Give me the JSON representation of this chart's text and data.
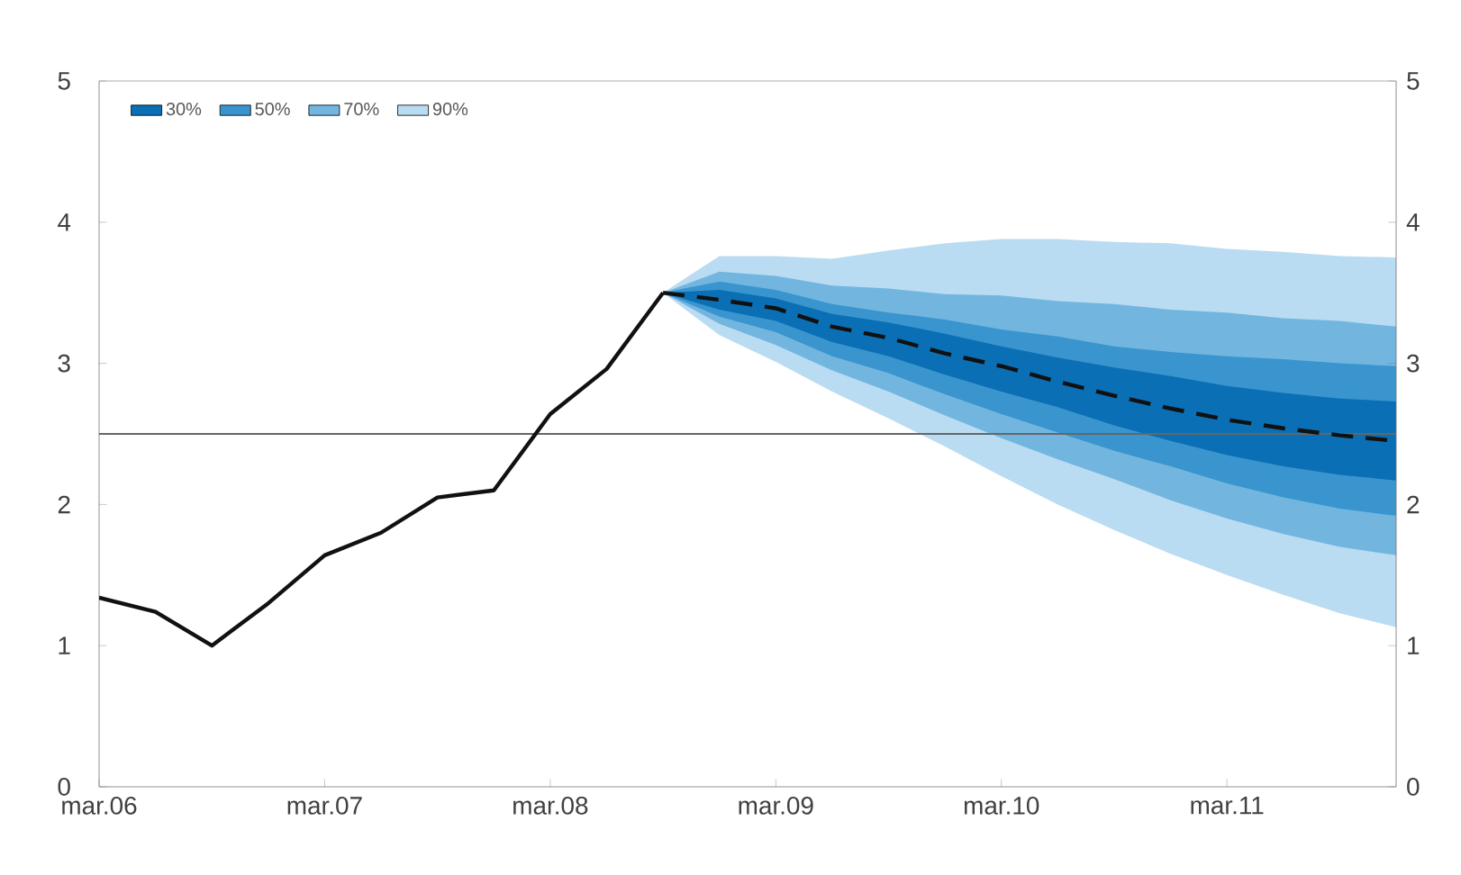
{
  "chart_data": {
    "type": "line",
    "xlim": [
      "2006-03",
      "2011-12"
    ],
    "xticks": [
      {
        "value": "2006-03",
        "label": "mar.06"
      },
      {
        "value": "2007-03",
        "label": "mar.07"
      },
      {
        "value": "2008-03",
        "label": "mar.08"
      },
      {
        "value": "2009-03",
        "label": "mar.09"
      },
      {
        "value": "2010-03",
        "label": "mar.10"
      },
      {
        "value": "2011-03",
        "label": "mar.11"
      }
    ],
    "ylim": [
      0,
      5
    ],
    "yticks": [
      0,
      1,
      2,
      3,
      4,
      5
    ],
    "y2lim": [
      0,
      5
    ],
    "y2ticks": [
      0,
      1,
      2,
      3,
      4,
      5
    ],
    "legend": "top left",
    "ref_lines": [
      {
        "axis": "y",
        "value": 2.5,
        "color": "#666666"
      }
    ],
    "series": [
      {
        "name": "90%",
        "color": "#b9dcf2",
        "x": [
          "2008-09",
          "2008-12",
          "2009-03",
          "2009-06",
          "2009-09",
          "2009-12",
          "2010-03",
          "2010-06",
          "2010-09",
          "2010-12",
          "2011-03",
          "2011-06",
          "2011-09",
          "2011-12"
        ],
        "values": [
          null,
          null,
          null,
          null,
          null,
          null,
          null,
          null,
          null,
          null,
          null,
          null,
          null,
          null
        ],
        "lower": [
          3.5,
          3.2,
          3.01,
          2.8,
          2.61,
          2.41,
          2.2,
          2.0,
          1.82,
          1.65,
          1.5,
          1.36,
          1.23,
          1.13
        ],
        "upper": [
          3.5,
          3.76,
          3.76,
          3.74,
          3.8,
          3.85,
          3.88,
          3.88,
          3.86,
          3.85,
          3.81,
          3.79,
          3.76,
          3.75
        ]
      },
      {
        "name": "70%",
        "color": "#72b6e0",
        "x": [
          "2008-09",
          "2008-12",
          "2009-03",
          "2009-06",
          "2009-09",
          "2009-12",
          "2010-03",
          "2010-06",
          "2010-09",
          "2010-12",
          "2011-03",
          "2011-06",
          "2011-09",
          "2011-12"
        ],
        "values": [
          null,
          null,
          null,
          null,
          null,
          null,
          null,
          null,
          null,
          null,
          null,
          null,
          null,
          null
        ],
        "lower": [
          3.5,
          3.28,
          3.13,
          2.95,
          2.8,
          2.63,
          2.47,
          2.32,
          2.18,
          2.03,
          1.9,
          1.79,
          1.7,
          1.64
        ],
        "upper": [
          3.5,
          3.65,
          3.62,
          3.55,
          3.53,
          3.49,
          3.48,
          3.44,
          3.42,
          3.38,
          3.36,
          3.32,
          3.3,
          3.26
        ]
      },
      {
        "name": "50%",
        "color": "#3a95cf",
        "x": [
          "2008-09",
          "2008-12",
          "2009-03",
          "2009-06",
          "2009-09",
          "2009-12",
          "2010-03",
          "2010-06",
          "2010-09",
          "2010-12",
          "2011-03",
          "2011-06",
          "2011-09",
          "2011-12"
        ],
        "values": [
          null,
          null,
          null,
          null,
          null,
          null,
          null,
          null,
          null,
          null,
          null,
          null,
          null,
          null
        ],
        "lower": [
          3.5,
          3.33,
          3.22,
          3.05,
          2.93,
          2.78,
          2.64,
          2.51,
          2.38,
          2.27,
          2.15,
          2.05,
          1.97,
          1.92
        ],
        "upper": [
          3.5,
          3.58,
          3.52,
          3.42,
          3.36,
          3.31,
          3.24,
          3.19,
          3.12,
          3.08,
          3.05,
          3.03,
          3.0,
          2.98
        ]
      },
      {
        "name": "30%",
        "color": "#0a6fb4",
        "x": [
          "2008-09",
          "2008-12",
          "2009-03",
          "2009-06",
          "2009-09",
          "2009-12",
          "2010-03",
          "2010-06",
          "2010-09",
          "2010-12",
          "2011-03",
          "2011-06",
          "2011-09",
          "2011-12"
        ],
        "values": [
          null,
          null,
          null,
          null,
          null,
          null,
          null,
          null,
          null,
          null,
          null,
          null,
          null,
          null
        ],
        "lower": [
          3.5,
          3.38,
          3.3,
          3.15,
          3.05,
          2.92,
          2.8,
          2.69,
          2.56,
          2.45,
          2.35,
          2.27,
          2.21,
          2.17
        ],
        "upper": [
          3.5,
          3.52,
          3.46,
          3.35,
          3.29,
          3.21,
          3.12,
          3.04,
          2.97,
          2.91,
          2.84,
          2.79,
          2.75,
          2.73
        ]
      },
      {
        "type": "line",
        "color": "#111111",
        "line_style": "solid",
        "x": [
          "2006-03",
          "2006-06",
          "2006-09",
          "2006-12",
          "2007-03",
          "2007-06",
          "2007-09",
          "2007-12",
          "2008-03",
          "2008-06",
          "2008-09"
        ],
        "values": [
          1.34,
          1.24,
          1.0,
          1.3,
          1.64,
          1.8,
          2.05,
          2.1,
          2.64,
          2.96,
          3.5
        ]
      },
      {
        "type": "line",
        "color": "#111111",
        "line_style": "dashed",
        "x": [
          "2008-09",
          "2008-12",
          "2009-03",
          "2009-06",
          "2009-09",
          "2009-12",
          "2010-03",
          "2010-06",
          "2010-09",
          "2010-12",
          "2011-03",
          "2011-06",
          "2011-09",
          "2011-12"
        ],
        "values": [
          3.5,
          3.45,
          3.39,
          3.26,
          3.18,
          3.07,
          2.98,
          2.87,
          2.77,
          2.68,
          2.6,
          2.54,
          2.49,
          2.45
        ]
      }
    ]
  }
}
